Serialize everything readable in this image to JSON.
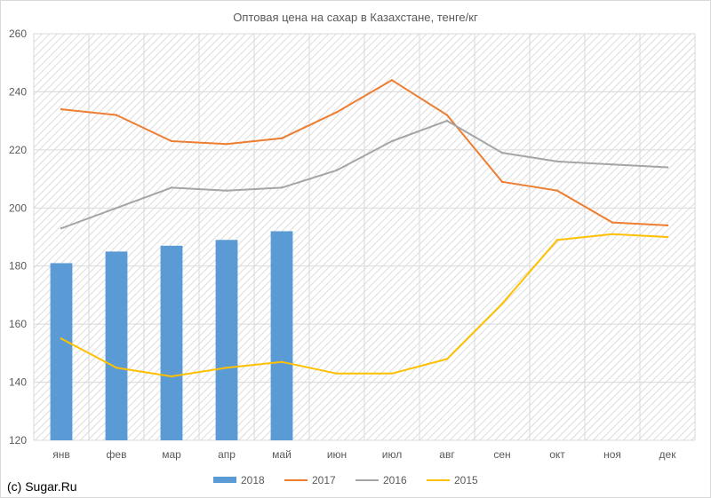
{
  "chart_data": {
    "type": "bar+line",
    "title": "Оптовая цена на сахар в Казахстане, тенге/кг",
    "categories": [
      "янв",
      "фев",
      "мар",
      "апр",
      "май",
      "июн",
      "июл",
      "авг",
      "сен",
      "окт",
      "ноя",
      "дек"
    ],
    "ylim": [
      120,
      260
    ],
    "yticks": [
      120,
      140,
      160,
      180,
      200,
      220,
      240,
      260
    ],
    "grid": true,
    "legend_position": "bottom",
    "series": [
      {
        "name": "2018",
        "kind": "bar",
        "color": "#5b9bd5",
        "values": [
          181,
          185,
          187,
          189,
          192,
          null,
          null,
          null,
          null,
          null,
          null,
          null
        ]
      },
      {
        "name": "2017",
        "kind": "line",
        "color": "#ed7d31",
        "values": [
          234,
          232,
          223,
          222,
          224,
          233,
          244,
          232,
          209,
          206,
          195,
          194
        ]
      },
      {
        "name": "2016",
        "kind": "line",
        "color": "#a5a5a5",
        "values": [
          193,
          200,
          207,
          206,
          207,
          213,
          223,
          230,
          219,
          216,
          215,
          214
        ]
      },
      {
        "name": "2015",
        "kind": "line",
        "color": "#ffc000",
        "values": [
          155,
          145,
          142,
          145,
          147,
          143,
          143,
          148,
          167,
          189,
          191,
          190
        ]
      }
    ]
  },
  "credit": "(c) Sugar.Ru"
}
